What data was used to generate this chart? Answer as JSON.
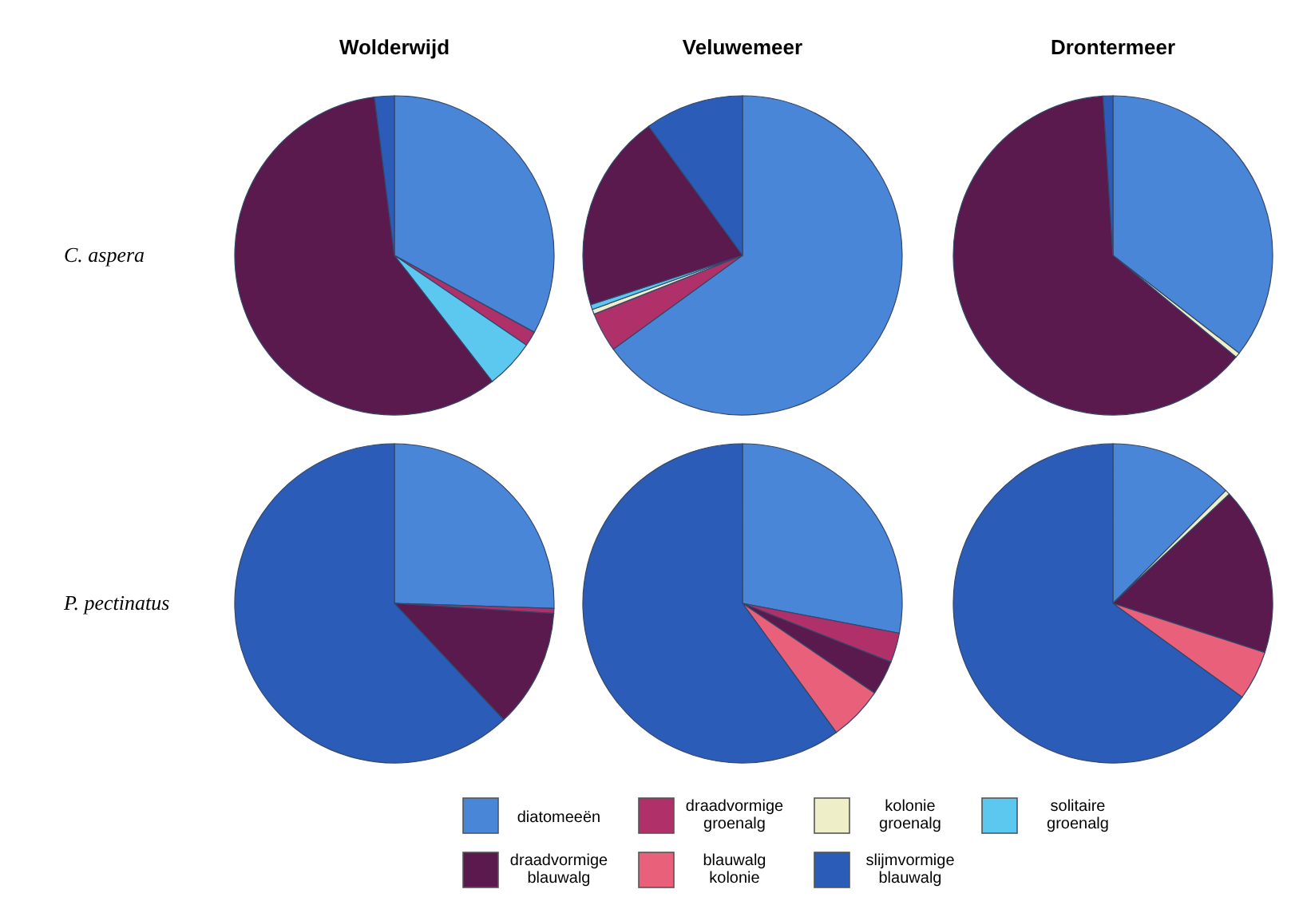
{
  "chart_data": [
    {
      "type": "pie",
      "title": "Wolderwijd",
      "ylabel": "C. aspera",
      "categories": [
        "diatomeeën",
        "draadvormige groenalg",
        "kolonie groenalg",
        "solitaire groenalg",
        "draadvormige blauwalg",
        "blauwalg kolonie",
        "slijmvormige blauwalg"
      ],
      "values": [
        33,
        1.5,
        0,
        5,
        58.5,
        0,
        2
      ],
      "colors": [
        "#4a86d8",
        "#b0306a",
        "#eeeec8",
        "#5cc8f0",
        "#5a1a4e",
        "#e8607a",
        "#2a5cb8"
      ],
      "legend": "bottom"
    },
    {
      "type": "pie",
      "title": "Veluwemeer",
      "categories": [
        null,
        null,
        null,
        null,
        null,
        null,
        null
      ],
      "values": [
        65,
        4,
        0.5,
        0.5,
        20,
        0,
        10
      ],
      "colors": [
        "#4a86d8",
        "#b0306a",
        "#eeeec8",
        "#5cc8f0",
        "#5a1a4e",
        "#e8607a",
        "#2a5cb8"
      ]
    },
    {
      "type": "pie",
      "title": "Drontermeer",
      "categories": [
        null,
        null,
        null,
        null,
        null,
        null,
        null
      ],
      "values": [
        35.5,
        0,
        0.5,
        0,
        63,
        0,
        1
      ],
      "colors": [
        "#4a86d8",
        "#b0306a",
        "#eeeec8",
        "#5cc8f0",
        "#5a1a4e",
        "#e8607a",
        "#2a5cb8"
      ]
    },
    {
      "type": "pie",
      "ylabel": "P. pectinatus",
      "categories": [
        null,
        null,
        null,
        null,
        null,
        null,
        null
      ],
      "values": [
        25.5,
        0.5,
        0,
        0,
        12,
        0,
        62
      ],
      "colors": [
        "#4a86d8",
        "#b0306a",
        "#eeeec8",
        "#5cc8f0",
        "#5a1a4e",
        "#e8607a",
        "#2a5cb8"
      ]
    },
    {
      "type": "pie",
      "categories": [
        null,
        null,
        null,
        null,
        null,
        null,
        null
      ],
      "values": [
        28,
        3,
        0,
        0,
        3.5,
        5.5,
        60
      ],
      "colors": [
        "#4a86d8",
        "#b0306a",
        "#eeeec8",
        "#5cc8f0",
        "#5a1a4e",
        "#e8607a",
        "#2a5cb8"
      ]
    },
    {
      "type": "pie",
      "categories": [
        null,
        null,
        null,
        null,
        null,
        null,
        null
      ],
      "values": [
        12.5,
        0,
        0.5,
        0,
        17,
        5,
        65
      ],
      "colors": [
        "#4a86d8",
        "#b0306a",
        "#eeeec8",
        "#5cc8f0",
        "#5a1a4e",
        "#e8607a",
        "#2a5cb8"
      ]
    }
  ]
}
